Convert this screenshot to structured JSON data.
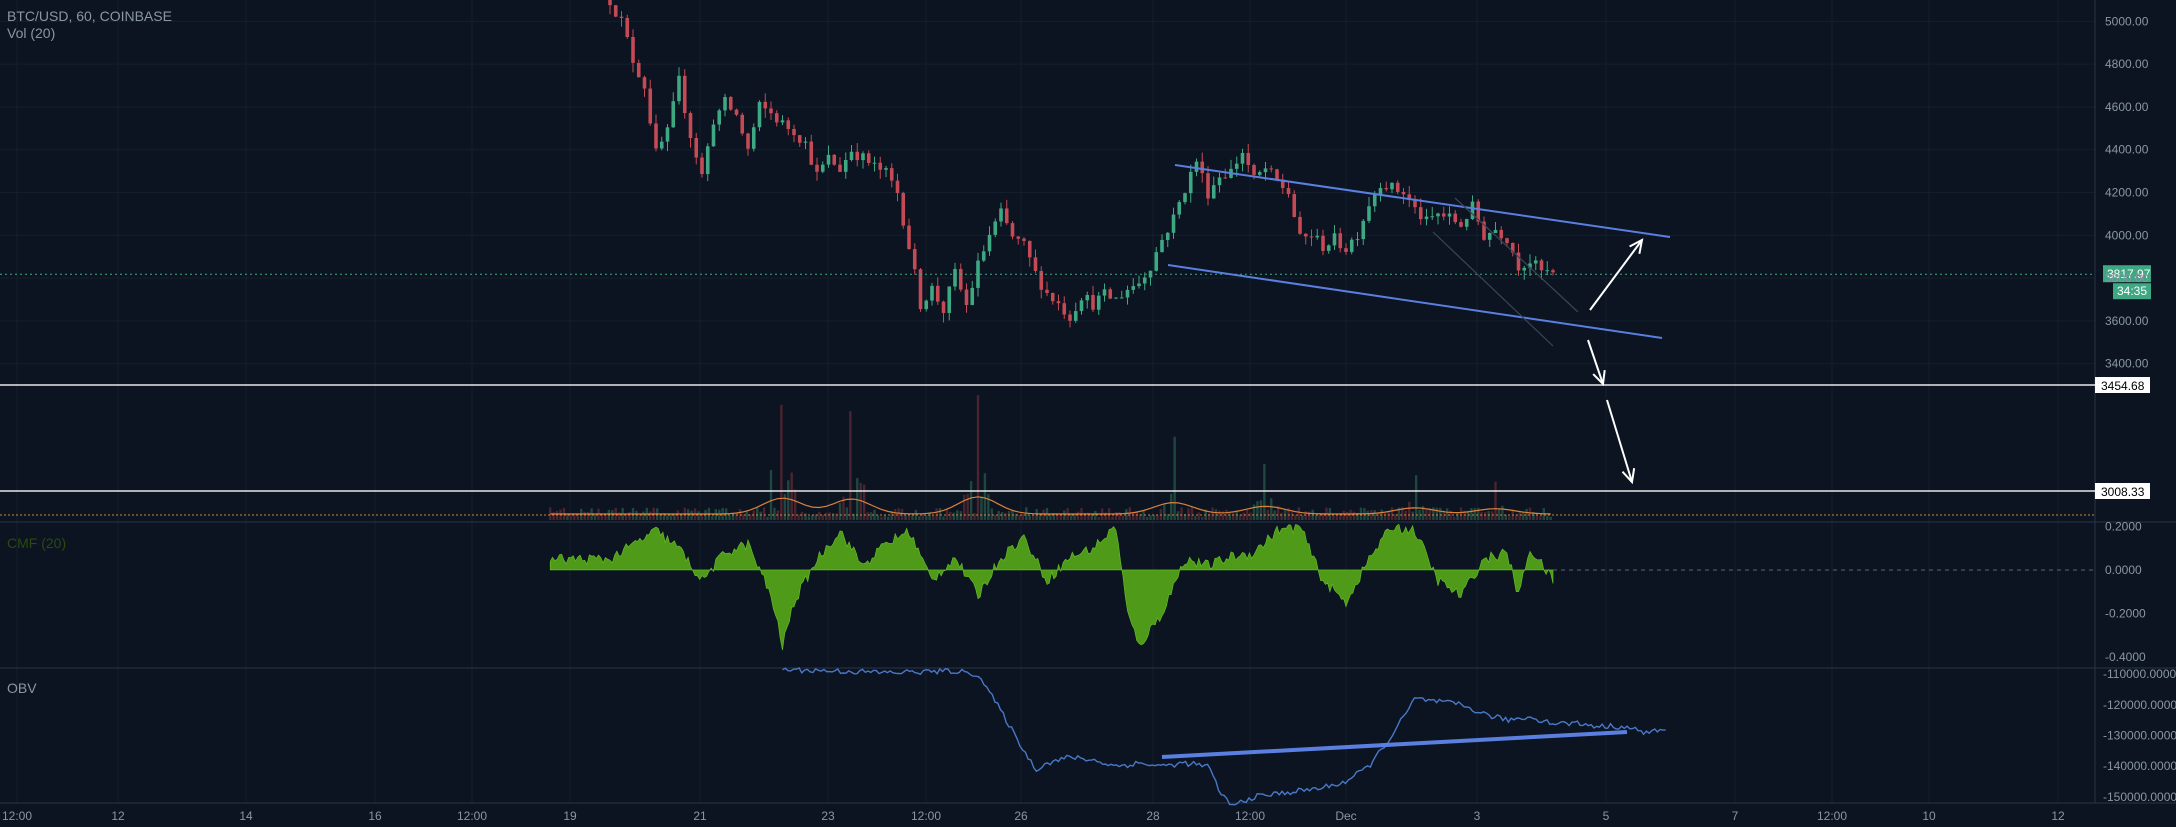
{
  "legend": {
    "symbol": "BTC/USD, 60, COINBASE",
    "volume": "Vol (20)",
    "cmf": "CMF (20)",
    "obv": "OBV"
  },
  "colors": {
    "background": "#0b1420",
    "up": "#3ea882",
    "down": "#c44a56",
    "cmf_fill": "#4f9a18",
    "obv_line": "#4a78c8",
    "channel": "#5a7fe0",
    "arrow": "#ffffff",
    "price_tag": "#3ea882",
    "volume_ma": "#d9813a"
  },
  "chart_data": [
    {
      "type": "candlestick",
      "pane": "price",
      "ylim": [
        3300,
        5100
      ],
      "y_ticks": [
        "5000.00",
        "4800.00",
        "4600.00",
        "4400.00",
        "4200.00",
        "4000.00",
        "3800.00",
        "3600.00",
        "3400.00"
      ],
      "x_ticks": [
        "12:00",
        "12",
        "14",
        "16",
        "12:00",
        "19",
        "21",
        "23",
        "12:00",
        "26",
        "28",
        "12:00",
        "Dec",
        "3",
        "5",
        "7",
        "12:00",
        "10",
        "12"
      ],
      "price_path": [
        [
          0.0,
          5100
        ],
        [
          0.5,
          5000
        ],
        [
          1.0,
          4820
        ],
        [
          1.5,
          4700
        ],
        [
          2.0,
          4380
        ],
        [
          2.5,
          4480
        ],
        [
          3.0,
          4720
        ],
        [
          3.5,
          4470
        ],
        [
          4.0,
          4280
        ],
        [
          4.5,
          4540
        ],
        [
          5.0,
          4620
        ],
        [
          5.5,
          4560
        ],
        [
          6.0,
          4400
        ],
        [
          6.5,
          4600
        ],
        [
          7.0,
          4570
        ],
        [
          7.5,
          4520
        ],
        [
          8.0,
          4490
        ],
        [
          8.5,
          4430
        ],
        [
          9.0,
          4280
        ],
        [
          9.5,
          4360
        ],
        [
          10.0,
          4310
        ],
        [
          10.5,
          4400
        ],
        [
          11.0,
          4360
        ],
        [
          11.5,
          4320
        ],
        [
          12.0,
          4290
        ],
        [
          12.5,
          4200
        ],
        [
          13.0,
          3950
        ],
        [
          13.5,
          3680
        ],
        [
          14.0,
          3750
        ],
        [
          14.5,
          3650
        ],
        [
          15.0,
          3820
        ],
        [
          15.5,
          3670
        ],
        [
          16.0,
          3860
        ],
        [
          16.5,
          4000
        ],
        [
          17.0,
          4100
        ],
        [
          17.5,
          3990
        ],
        [
          18.0,
          3950
        ],
        [
          18.5,
          3820
        ],
        [
          19.0,
          3730
        ],
        [
          19.5,
          3680
        ],
        [
          20.0,
          3620
        ],
        [
          20.5,
          3720
        ],
        [
          21.0,
          3680
        ],
        [
          21.5,
          3720
        ],
        [
          22.0,
          3700
        ],
        [
          22.5,
          3750
        ],
        [
          23.0,
          3780
        ],
        [
          23.5,
          3860
        ],
        [
          24.0,
          3980
        ],
        [
          24.5,
          4080
        ],
        [
          25.0,
          4220
        ],
        [
          25.5,
          4350
        ],
        [
          26.0,
          4200
        ],
        [
          26.5,
          4280
        ],
        [
          27.0,
          4300
        ],
        [
          27.5,
          4390
        ],
        [
          28.0,
          4260
        ],
        [
          28.5,
          4310
        ],
        [
          29.0,
          4250
        ],
        [
          29.5,
          4200
        ],
        [
          30.0,
          3980
        ],
        [
          30.5,
          4000
        ],
        [
          31.0,
          3950
        ],
        [
          31.5,
          3980
        ],
        [
          32.0,
          3940
        ],
        [
          32.5,
          4010
        ],
        [
          33.0,
          4150
        ],
        [
          33.5,
          4250
        ],
        [
          34.0,
          4220
        ],
        [
          34.5,
          4200
        ],
        [
          35.0,
          4120
        ],
        [
          35.5,
          4060
        ],
        [
          36.0,
          4100
        ],
        [
          36.5,
          4080
        ],
        [
          37.0,
          4050
        ],
        [
          37.5,
          4130
        ],
        [
          38.0,
          4000
        ],
        [
          38.5,
          4030
        ],
        [
          39.0,
          3990
        ],
        [
          39.5,
          3860
        ],
        [
          40.0,
          3880
        ],
        [
          40.5,
          3830
        ],
        [
          41.0,
          3817.97
        ]
      ],
      "last_price": "3817.97",
      "countdown": "34:35",
      "levels": [
        "3454.68",
        "3008.33"
      ],
      "annotations": [
        "descending channel upper line from ~4380 to ~4090",
        "descending channel lower line from ~3960 to ~3650",
        "arrow up toward ~4070",
        "arrows down toward the 3454.68 and 3008.33 levels"
      ]
    },
    {
      "type": "bar",
      "pane": "volume",
      "name": "Vol (20)",
      "spikes": [
        [
          7.5,
          0.72
        ],
        [
          10.5,
          0.68
        ],
        [
          16.0,
          0.78
        ],
        [
          24.5,
          0.52
        ],
        [
          28.5,
          0.35
        ],
        [
          35.0,
          0.28
        ],
        [
          38.5,
          0.24
        ]
      ]
    },
    {
      "type": "area",
      "pane": "cmf",
      "name": "CMF (20)",
      "ylim": [
        -0.45,
        0.22
      ],
      "y_ticks": [
        "0.2000",
        "0.0000",
        "-0.2000",
        "-0.4000"
      ],
      "values": [
        [
          0.0,
          0.05
        ],
        [
          2.0,
          0.18
        ],
        [
          3.0,
          0.1
        ],
        [
          4.0,
          -0.05
        ],
        [
          5.0,
          0.08
        ],
        [
          6.0,
          0.12
        ],
        [
          7.0,
          -0.12
        ],
        [
          7.5,
          -0.35
        ],
        [
          8.0,
          -0.15
        ],
        [
          9.0,
          0.05
        ],
        [
          10.0,
          0.18
        ],
        [
          11.0,
          0.02
        ],
        [
          12.0,
          0.12
        ],
        [
          13.0,
          0.18
        ],
        [
          14.0,
          -0.05
        ],
        [
          15.0,
          0.06
        ],
        [
          16.0,
          -0.12
        ],
        [
          17.0,
          0.06
        ],
        [
          18.0,
          0.15
        ],
        [
          19.0,
          -0.05
        ],
        [
          20.0,
          0.06
        ],
        [
          21.0,
          0.1
        ],
        [
          22.0,
          0.2
        ],
        [
          22.5,
          -0.2
        ],
        [
          23.0,
          -0.35
        ],
        [
          24.0,
          -0.2
        ],
        [
          25.0,
          0.05
        ],
        [
          26.0,
          0.02
        ],
        [
          27.0,
          0.06
        ],
        [
          28.0,
          0.08
        ],
        [
          29.0,
          0.18
        ],
        [
          30.0,
          0.2
        ],
        [
          31.0,
          -0.05
        ],
        [
          32.0,
          -0.15
        ],
        [
          33.0,
          0.05
        ],
        [
          34.0,
          0.2
        ],
        [
          35.0,
          0.18
        ],
        [
          36.0,
          -0.05
        ],
        [
          37.0,
          -0.12
        ],
        [
          38.0,
          0.05
        ],
        [
          39.0,
          0.08
        ],
        [
          39.5,
          -0.12
        ],
        [
          40.0,
          0.1
        ],
        [
          41.0,
          -0.05
        ]
      ]
    },
    {
      "type": "line",
      "pane": "obv",
      "name": "OBV",
      "ylim": [
        -152000,
        -108000
      ],
      "y_ticks": [
        "-110000.0000",
        "-120000.0000",
        "-130000.0000",
        "-140000.0000",
        "-150000.0000"
      ],
      "values": [
        [
          7.5,
          -108500
        ],
        [
          10.0,
          -109000
        ],
        [
          12.0,
          -109500
        ],
        [
          15.0,
          -109000
        ],
        [
          16.0,
          -110000
        ],
        [
          17.0,
          -122000
        ],
        [
          18.0,
          -135000
        ],
        [
          18.5,
          -141000
        ],
        [
          19.0,
          -139000
        ],
        [
          20.0,
          -137000
        ],
        [
          21.0,
          -138000
        ],
        [
          22.0,
          -140000
        ],
        [
          23.0,
          -139000
        ],
        [
          24.0,
          -140000
        ],
        [
          25.0,
          -139000
        ],
        [
          26.0,
          -140000
        ],
        [
          26.5,
          -148000
        ],
        [
          27.0,
          -153000
        ],
        [
          28.0,
          -150000
        ],
        [
          29.0,
          -149000
        ],
        [
          30.0,
          -148000
        ],
        [
          31.0,
          -147000
        ],
        [
          32.0,
          -145000
        ],
        [
          33.0,
          -140000
        ],
        [
          34.0,
          -130000
        ],
        [
          35.0,
          -118000
        ],
        [
          36.0,
          -119000
        ],
        [
          37.0,
          -120000
        ],
        [
          38.0,
          -123000
        ],
        [
          39.0,
          -125000
        ],
        [
          40.0,
          -124000
        ],
        [
          41.0,
          -126000
        ],
        [
          42.0,
          -126000
        ],
        [
          43.0,
          -127000
        ],
        [
          44.0,
          -127000
        ],
        [
          45.0,
          -129000
        ],
        [
          46.0,
          -128000
        ]
      ],
      "trendline": "rising support from ~-141000 to ~-131000"
    }
  ]
}
